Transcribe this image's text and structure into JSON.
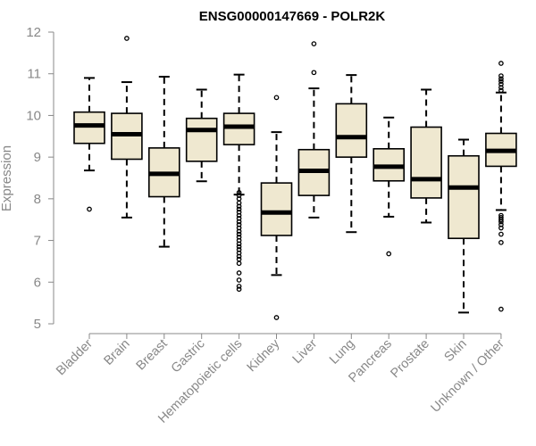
{
  "chart_data": {
    "type": "boxplot",
    "title": "ENSG00000147669 - POLR2K",
    "xlabel": "",
    "ylabel": "Expression",
    "ylim": [
      5,
      12
    ],
    "yticks": [
      5,
      6,
      7,
      8,
      9,
      10,
      11,
      12
    ],
    "box_color": "#efe8d0",
    "categories": [
      "Bladder",
      "Brain",
      "Breast",
      "Gastric",
      "Hematopoietic cells",
      "Kidney",
      "Liver",
      "Lung",
      "Pancreas",
      "Prostate",
      "Skin",
      "Unknown / Other"
    ],
    "boxes": [
      {
        "name": "Bladder",
        "min": 8.68,
        "q1": 9.33,
        "median": 9.76,
        "q3": 10.08,
        "max": 10.9,
        "outliers": [
          7.75
        ]
      },
      {
        "name": "Brain",
        "min": 7.55,
        "q1": 8.95,
        "median": 9.55,
        "q3": 10.05,
        "max": 10.8,
        "outliers": [
          11.85
        ]
      },
      {
        "name": "Breast",
        "min": 6.85,
        "q1": 8.05,
        "median": 8.6,
        "q3": 9.22,
        "max": 10.93,
        "outliers": []
      },
      {
        "name": "Gastric",
        "min": 8.42,
        "q1": 8.9,
        "median": 9.65,
        "q3": 9.93,
        "max": 10.62,
        "outliers": []
      },
      {
        "name": "Hematopoietic cells",
        "min": 8.1,
        "q1": 9.3,
        "median": 9.73,
        "q3": 10.05,
        "max": 10.98,
        "outliers": [
          8.15,
          8.08,
          8.0,
          7.9,
          7.82,
          7.75,
          7.68,
          7.6,
          7.53,
          7.45,
          7.38,
          7.3,
          7.22,
          7.15,
          7.08,
          7.0,
          6.92,
          6.85,
          6.78,
          6.7,
          6.62,
          6.55,
          6.45,
          6.22,
          6.05,
          5.9,
          5.83
        ]
      },
      {
        "name": "Kidney",
        "min": 6.17,
        "q1": 7.12,
        "median": 7.67,
        "q3": 8.38,
        "max": 9.6,
        "outliers": [
          10.43,
          5.15
        ]
      },
      {
        "name": "Liver",
        "min": 7.55,
        "q1": 8.08,
        "median": 8.67,
        "q3": 9.18,
        "max": 10.65,
        "outliers": [
          11.72,
          11.03
        ]
      },
      {
        "name": "Lung",
        "min": 7.2,
        "q1": 9.0,
        "median": 9.48,
        "q3": 10.28,
        "max": 10.97,
        "outliers": []
      },
      {
        "name": "Pancreas",
        "min": 7.57,
        "q1": 8.43,
        "median": 8.77,
        "q3": 9.2,
        "max": 9.95,
        "outliers": [
          6.68
        ]
      },
      {
        "name": "Prostate",
        "min": 7.43,
        "q1": 8.02,
        "median": 8.47,
        "q3": 9.72,
        "max": 10.62,
        "outliers": []
      },
      {
        "name": "Skin",
        "min": 5.27,
        "q1": 7.05,
        "median": 8.27,
        "q3": 9.03,
        "max": 9.42,
        "outliers": []
      },
      {
        "name": "Unknown / Other",
        "min": 7.73,
        "q1": 8.78,
        "median": 9.15,
        "q3": 9.57,
        "max": 10.55,
        "outliers": [
          11.25,
          10.95,
          10.88,
          10.82,
          10.75,
          10.67,
          10.6,
          7.6,
          7.55,
          7.5,
          7.45,
          7.38,
          7.3,
          7.15,
          6.95,
          5.35
        ]
      }
    ]
  }
}
